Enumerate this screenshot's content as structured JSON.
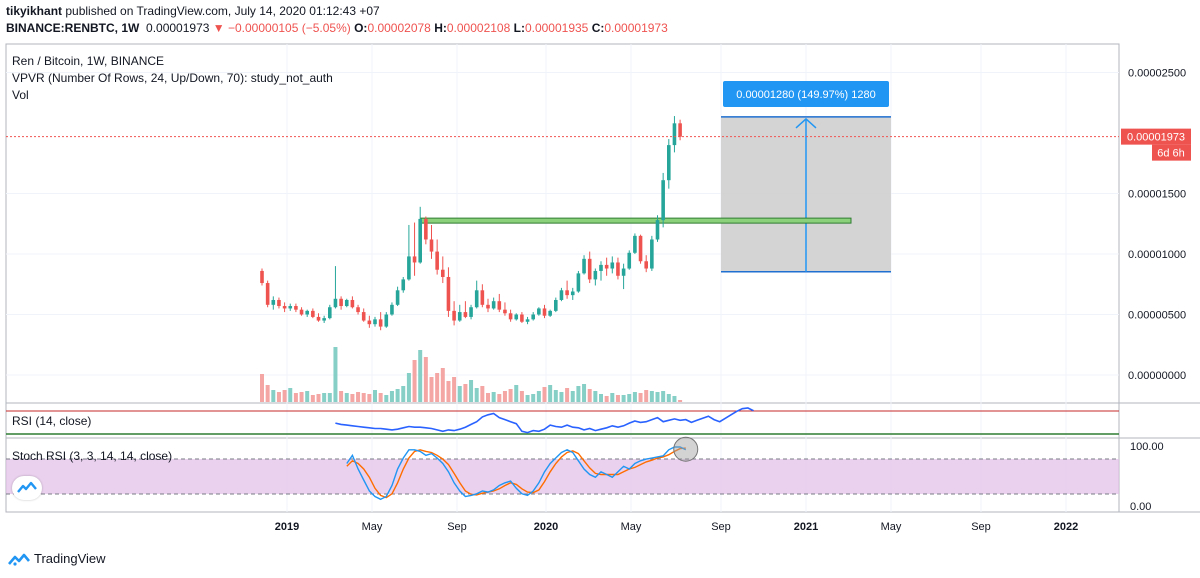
{
  "header": {
    "line1": {
      "author": "tikyikhant",
      "rest": " published on TradingView.com, July 14, 2020 01:12:43 +07"
    },
    "line2": {
      "symbol": "BINANCE:RENBTC, 1W",
      "last": "0.00001973",
      "change": "▼ −0.00000105 (−5.05%)",
      "o_label": "O:",
      "o_value": "0.00002078",
      "h_label": "H:",
      "h_value": "0.00002108",
      "l_label": "L:",
      "l_value": "0.00001935",
      "c_label": "C:",
      "c_value": "0.00001973"
    }
  },
  "legend": {
    "title": "Ren / Bitcoin, 1W, BINANCE",
    "vpvr": "VPVR (Number Of Rows, 24, Up/Down, 70): study_not_auth",
    "vol": "Vol"
  },
  "panes": {
    "rsi_label": "RSI (14, close)",
    "stoch_label": "Stoch RSI (3, 3, 14, 14, close)"
  },
  "footer": {
    "brand": "TradingView",
    "logo_icon": "tradingview-logo-icon"
  },
  "colors": {
    "up": "#26a69a",
    "down": "#ef5350",
    "up_vol": "#86cfc6",
    "down_vol": "#f4a6a4",
    "rsi": "#2962ff",
    "stoch_k": "#2196f3",
    "stoch_d": "#ff6d00",
    "stoch_band": "#e1bee7",
    "price_line": "#ef5350",
    "measure": "#2196f3",
    "resistance": "#4caf50"
  },
  "chart_data": {
    "type": "candlestick",
    "x_tick_labels": [
      "2019",
      "May",
      "Sep",
      "2020",
      "May",
      "Sep",
      "2021",
      "May",
      "Sep",
      "2022"
    ],
    "y_tick_labels": [
      "0.00002500",
      "0.00001500",
      "0.00001000",
      "0.00000500",
      "0.00000000"
    ],
    "ylim": [
      0,
      2.7e-05
    ],
    "last_price_label": "0.00001973",
    "countdown_label": "6d 6h",
    "rsi_ticks": [],
    "stoch_ticks": [
      "100.00",
      "0.00"
    ],
    "measure_label": "0.00001280 (149.97%) 1280",
    "measure_range": [
      8.53e-06,
      2.133e-05
    ],
    "resistance_level": 1.28e-05,
    "ohlc": [
      [
        8.6e-06,
        8.8e-06,
        7.4e-06,
        7.6e-06
      ],
      [
        7.6e-06,
        7.8e-06,
        5.6e-06,
        5.8e-06
      ],
      [
        5.8e-06,
        6.5e-06,
        5.4e-06,
        6.2e-06
      ],
      [
        6.2e-06,
        6.4e-06,
        5.5e-06,
        5.7e-06
      ],
      [
        5.7e-06,
        6e-06,
        5.2e-06,
        5.5e-06
      ],
      [
        5.5e-06,
        5.9e-06,
        5.3e-06,
        5.7e-06
      ],
      [
        5.7e-06,
        5.9e-06,
        5.2e-06,
        5.4e-06
      ],
      [
        5.4e-06,
        5.6e-06,
        4.9e-06,
        5e-06
      ],
      [
        5e-06,
        5.4e-06,
        4.8e-06,
        5.3e-06
      ],
      [
        5.3e-06,
        5.5e-06,
        4.7e-06,
        4.8e-06
      ],
      [
        4.8e-06,
        5.1e-06,
        4.4e-06,
        4.5e-06
      ],
      [
        4.5e-06,
        4.9e-06,
        4.3e-06,
        4.7e-06
      ],
      [
        4.7e-06,
        5.8e-06,
        4.6e-06,
        5.6e-06
      ],
      [
        5.6e-06,
        9e-06,
        5.5e-06,
        6.3e-06
      ],
      [
        6.3e-06,
        6.5e-06,
        5.4e-06,
        5.7e-06
      ],
      [
        5.7e-06,
        6.3e-06,
        5.6e-06,
        6.2e-06
      ],
      [
        6.2e-06,
        6.5e-06,
        5.5e-06,
        5.6e-06
      ],
      [
        5.6e-06,
        5.8e-06,
        5e-06,
        5.2e-06
      ],
      [
        5.2e-06,
        5.5e-06,
        4.4e-06,
        4.5e-06
      ],
      [
        4.5e-06,
        4.9e-06,
        3.9e-06,
        4.2e-06
      ],
      [
        4.2e-06,
        4.8e-06,
        4e-06,
        4.6e-06
      ],
      [
        4.6e-06,
        5.2e-06,
        3.7e-06,
        4e-06
      ],
      [
        4e-06,
        5.2e-06,
        3.9e-06,
        5e-06
      ],
      [
        5e-06,
        6e-06,
        4.9e-06,
        5.8e-06
      ],
      [
        5.8e-06,
        7.3e-06,
        5.7e-06,
        7e-06
      ],
      [
        7e-06,
        8.1e-06,
        6.8e-06,
        7.9e-06
      ],
      [
        7.9e-06,
        1.24e-05,
        7.8e-06,
        9.8e-06
      ],
      [
        9.8e-06,
        1.26e-05,
        8.2e-06,
        9.3e-06
      ],
      [
        9.3e-06,
        1.39e-05,
        9.2e-06,
        1.29e-05
      ],
      [
        1.29e-05,
        1.31e-05,
        1.08e-05,
        1.12e-05
      ],
      [
        1.12e-05,
        1.24e-05,
        9.6e-06,
        1.02e-05
      ],
      [
        1.02e-05,
        1.12e-05,
        8.3e-06,
        8.7e-06
      ],
      [
        8.7e-06,
        9.8e-06,
        7.6e-06,
        8.1e-06
      ],
      [
        8.1e-06,
        8.9e-06,
        4.8e-06,
        5.3e-06
      ],
      [
        5.3e-06,
        6.1e-06,
        4.1e-06,
        4.5e-06
      ],
      [
        4.5e-06,
        5.8e-06,
        4.4e-06,
        5.2e-06
      ],
      [
        5.2e-06,
        6.1e-06,
        4.7e-06,
        4.8e-06
      ],
      [
        4.8e-06,
        5.8e-06,
        4.6e-06,
        5.6e-06
      ],
      [
        5.6e-06,
        7.8e-06,
        5.5e-06,
        7e-06
      ],
      [
        7e-06,
        7.5e-06,
        5.6e-06,
        5.8e-06
      ],
      [
        5.8e-06,
        6.3e-06,
        5.2e-06,
        5.5e-06
      ],
      [
        5.5e-06,
        6.4e-06,
        5.4e-06,
        6.1e-06
      ],
      [
        6.1e-06,
        6.7e-06,
        5.2e-06,
        5.4e-06
      ],
      [
        5.4e-06,
        6e-06,
        4.9e-06,
        5.1e-06
      ],
      [
        5.1e-06,
        5.4e-06,
        4.4e-06,
        4.6e-06
      ],
      [
        4.6e-06,
        5.1e-06,
        4.5e-06,
        5e-06
      ],
      [
        5e-06,
        5.2e-06,
        4.3e-06,
        4.4e-06
      ],
      [
        4.4e-06,
        4.8e-06,
        4.2e-06,
        4.6e-06
      ],
      [
        4.6e-06,
        5.2e-06,
        4.5e-06,
        5e-06
      ],
      [
        5e-06,
        5.6e-06,
        4.9e-06,
        5.5e-06
      ],
      [
        5.5e-06,
        5.8e-06,
        4.7e-06,
        4.9e-06
      ],
      [
        4.9e-06,
        5.4e-06,
        4.8e-06,
        5.3e-06
      ],
      [
        5.3e-06,
        6.4e-06,
        5.2e-06,
        6.2e-06
      ],
      [
        6.2e-06,
        7.2e-06,
        6.1e-06,
        7e-06
      ],
      [
        7e-06,
        7.8e-06,
        6.3e-06,
        6.6e-06
      ],
      [
        6.6e-06,
        7.2e-06,
        6.2e-06,
        6.9e-06
      ],
      [
        6.9e-06,
        8.6e-06,
        6.8e-06,
        8.4e-06
      ],
      [
        8.4e-06,
        9.9e-06,
        8.3e-06,
        9.6e-06
      ],
      [
        9.6e-06,
        1.02e-05,
        7.6e-06,
        7.9e-06
      ],
      [
        7.9e-06,
        8.8e-06,
        7.4e-06,
        8.6e-06
      ],
      [
        8.6e-06,
        9.4e-06,
        7.8e-06,
        9.1e-06
      ],
      [
        9.1e-06,
        9.7e-06,
        8.2e-06,
        8.8e-06
      ],
      [
        8.8e-06,
        9.8e-06,
        8.4e-06,
        9.3e-06
      ],
      [
        9.3e-06,
        9.7e-06,
        7.9e-06,
        8.2e-06
      ],
      [
        8.2e-06,
        9.2e-06,
        7.1e-06,
        8.8e-06
      ],
      [
        8.8e-06,
        1.03e-05,
        8.7e-06,
        1.01e-05
      ],
      [
        1.01e-05,
        1.17e-05,
        1e-05,
        1.15e-05
      ],
      [
        1.15e-05,
        1.16e-05,
        9.2e-06,
        9.4e-06
      ],
      [
        9.4e-06,
        9.9e-06,
        8.5e-06,
        8.8e-06
      ],
      [
        8.8e-06,
        1.15e-05,
        8.6e-06,
        1.12e-05
      ],
      [
        1.12e-05,
        1.32e-05,
        1.1e-05,
        1.28e-05
      ],
      [
        1.28e-05,
        1.67e-05,
        1.22e-05,
        1.61e-05
      ],
      [
        1.61e-05,
        1.95e-05,
        1.54e-05,
        1.9e-05
      ],
      [
        1.9e-05,
        2.14e-05,
        1.84e-05,
        2.08e-05
      ],
      [
        2.08e-05,
        2.11e-05,
        1.94e-05,
        1.97e-05
      ]
    ],
    "volume": [
      28,
      17,
      12,
      10,
      12,
      14,
      9,
      10,
      11,
      7,
      8,
      9,
      9,
      55,
      11,
      9,
      8,
      10,
      9,
      8,
      12,
      9,
      7,
      11,
      13,
      16,
      29,
      42,
      52,
      45,
      25,
      29,
      34,
      21,
      25,
      16,
      18,
      22,
      14,
      16,
      9,
      10,
      8,
      11,
      13,
      17,
      11,
      7,
      8,
      11,
      15,
      17,
      12,
      10,
      14,
      11,
      16,
      18,
      13,
      11,
      8,
      6,
      9,
      7,
      7,
      8,
      10,
      9,
      12,
      11,
      10,
      11,
      8,
      6,
      2
    ],
    "rsi": [
      58,
      56,
      55,
      54,
      53,
      52,
      51,
      50,
      50,
      49,
      48,
      49,
      51,
      53,
      52,
      52,
      51,
      50,
      48,
      46,
      48,
      47,
      49,
      52,
      56,
      60,
      67,
      70,
      72,
      66,
      63,
      60,
      57,
      46,
      44,
      47,
      46,
      49,
      55,
      53,
      52,
      55,
      52,
      51,
      48,
      50,
      47,
      49,
      51,
      54,
      52,
      54,
      58,
      61,
      59,
      60,
      63,
      66,
      60,
      62,
      64,
      62,
      63,
      59,
      62,
      65,
      68,
      63,
      60,
      65,
      70,
      75,
      79,
      80,
      76
    ],
    "stoch_k": [
      70,
      85,
      60,
      40,
      20,
      10,
      5,
      10,
      30,
      60,
      80,
      95,
      95,
      92,
      85,
      88,
      80,
      70,
      55,
      35,
      20,
      10,
      12,
      15,
      20,
      18,
      22,
      30,
      35,
      38,
      25,
      15,
      12,
      20,
      35,
      55,
      70,
      80,
      90,
      95,
      90,
      75,
      60,
      50,
      45,
      55,
      50,
      45,
      55,
      65,
      60,
      70,
      75,
      78,
      80,
      82,
      84,
      95,
      100,
      100,
      95
    ],
    "stoch_d": [
      65,
      75,
      70,
      60,
      45,
      25,
      12,
      8,
      15,
      35,
      60,
      80,
      92,
      95,
      92,
      90,
      85,
      78,
      68,
      52,
      35,
      20,
      14,
      13,
      16,
      18,
      20,
      24,
      30,
      35,
      32,
      24,
      18,
      17,
      22,
      37,
      55,
      70,
      82,
      90,
      93,
      88,
      75,
      62,
      52,
      50,
      50,
      50,
      50,
      55,
      60,
      63,
      68,
      73,
      76,
      80,
      82,
      86,
      92,
      97,
      98
    ]
  }
}
